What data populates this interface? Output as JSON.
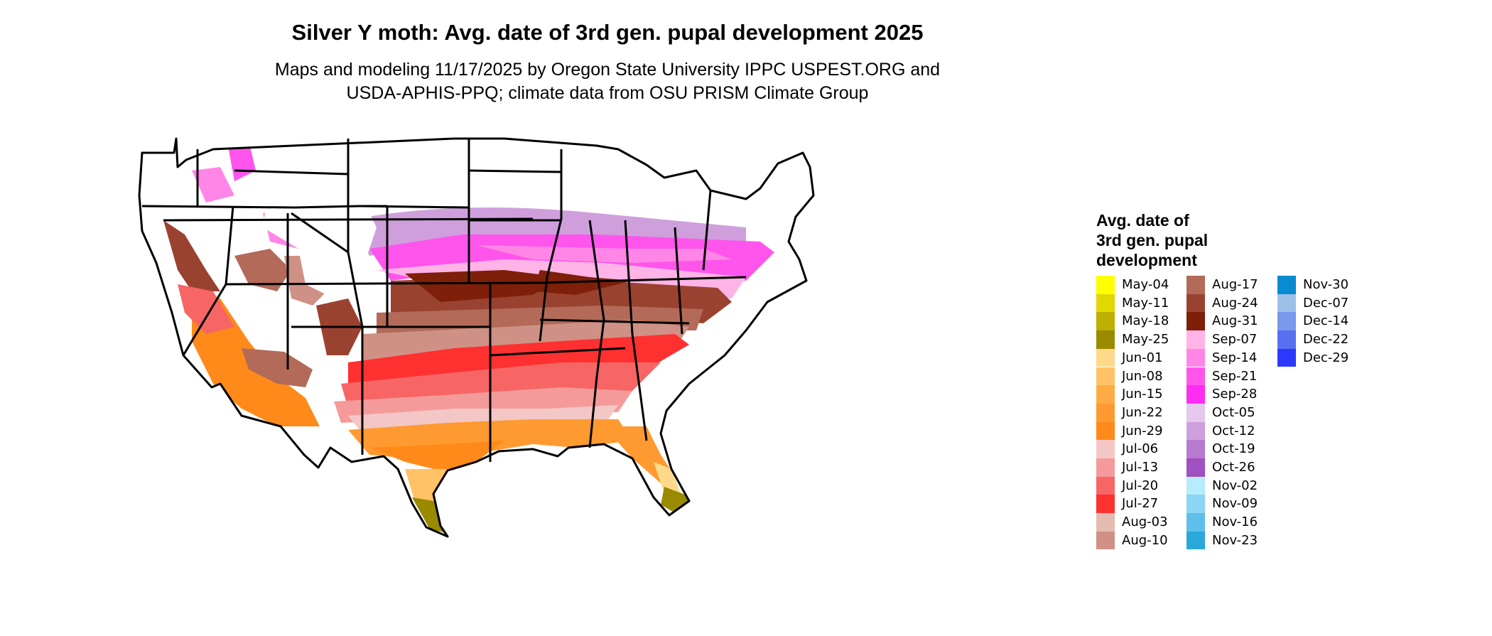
{
  "title": "Silver Y moth: Avg. date of 3rd gen. pupal development 2025",
  "subtitle_line1": "Maps and modeling 11/17/2025 by Oregon State University IPPC USPEST.ORG and",
  "subtitle_line2": "USDA-APHIS-PPQ; climate data from OSU PRISM Climate Group",
  "map": {
    "region": "Contiguous United States",
    "state_border_color": "#000000",
    "no_data_color": "#ffffff"
  },
  "legend": {
    "title_lines": [
      "Avg. date of",
      "3rd gen. pupal",
      "development"
    ],
    "columns": [
      [
        {
          "label": "May-04",
          "color": "#ffff00"
        },
        {
          "label": "May-11",
          "color": "#e0d800"
        },
        {
          "label": "May-18",
          "color": "#bdb000"
        },
        {
          "label": "May-25",
          "color": "#9a8a00"
        },
        {
          "label": "Jun-01",
          "color": "#ffd98a"
        },
        {
          "label": "Jun-08",
          "color": "#ffc266"
        },
        {
          "label": "Jun-15",
          "color": "#ffab45"
        },
        {
          "label": "Jun-22",
          "color": "#ff9a30"
        },
        {
          "label": "Jun-29",
          "color": "#ff8a1a"
        },
        {
          "label": "Jul-06",
          "color": "#f4c7c7"
        },
        {
          "label": "Jul-13",
          "color": "#f59a9a"
        },
        {
          "label": "Jul-20",
          "color": "#f76565"
        },
        {
          "label": "Jul-27",
          "color": "#ff3030"
        },
        {
          "label": "Aug-03",
          "color": "#e5bbb0"
        },
        {
          "label": "Aug-10",
          "color": "#cf9185"
        }
      ],
      [
        {
          "label": "Aug-17",
          "color": "#b36a58"
        },
        {
          "label": "Aug-24",
          "color": "#9a4230"
        },
        {
          "label": "Aug-31",
          "color": "#7e1f0a"
        },
        {
          "label": "Sep-07",
          "color": "#ffb3e6"
        },
        {
          "label": "Sep-14",
          "color": "#ff86e6"
        },
        {
          "label": "Sep-21",
          "color": "#ff55ec"
        },
        {
          "label": "Sep-28",
          "color": "#ff2cf2"
        },
        {
          "label": "Oct-05",
          "color": "#e5c9ec"
        },
        {
          "label": "Oct-12",
          "color": "#cf9fdc"
        },
        {
          "label": "Oct-19",
          "color": "#b87ad0"
        },
        {
          "label": "Oct-26",
          "color": "#a050c0"
        },
        {
          "label": "Nov-02",
          "color": "#b5ecff"
        },
        {
          "label": "Nov-09",
          "color": "#8ad6f4"
        },
        {
          "label": "Nov-16",
          "color": "#5ec0ea"
        },
        {
          "label": "Nov-23",
          "color": "#2aa8dc"
        }
      ],
      [
        {
          "label": "Nov-30",
          "color": "#0a8ad0"
        },
        {
          "label": "Dec-07",
          "color": "#9cc0e8"
        },
        {
          "label": "Dec-14",
          "color": "#7a98ec"
        },
        {
          "label": "Dec-22",
          "color": "#5870f2"
        },
        {
          "label": "Dec-29",
          "color": "#2d38ff"
        }
      ]
    ]
  }
}
